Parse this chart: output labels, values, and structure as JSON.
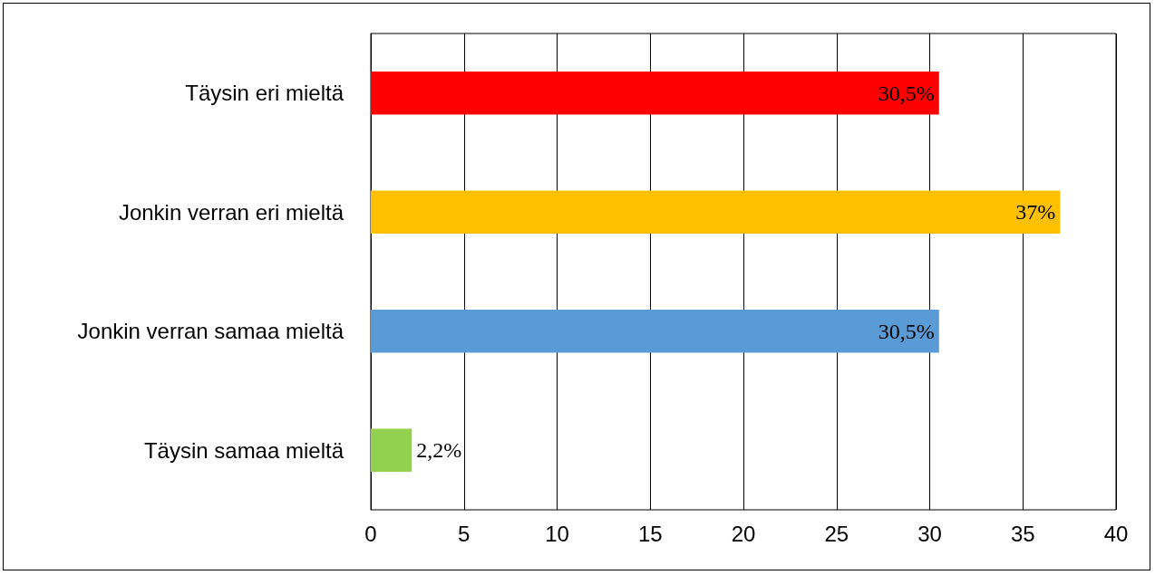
{
  "chart_data": {
    "type": "bar",
    "orientation": "horizontal",
    "categories": [
      "Täysin eri mieltä",
      "Jonkin verran eri mieltä",
      "Jonkin verran samaa mieltä",
      "Täysin samaa mieltä"
    ],
    "values": [
      30.5,
      37,
      30.5,
      2.2
    ],
    "colors": [
      "#ff0000",
      "#ffc000",
      "#5b9bd5",
      "#92d050"
    ],
    "value_labels": [
      "30,5%",
      "37%",
      "30,5%",
      "2,2%"
    ],
    "xlim": [
      0,
      40
    ],
    "xticks": [
      0,
      5,
      10,
      15,
      20,
      25,
      30,
      35,
      40
    ],
    "grid": "x"
  }
}
